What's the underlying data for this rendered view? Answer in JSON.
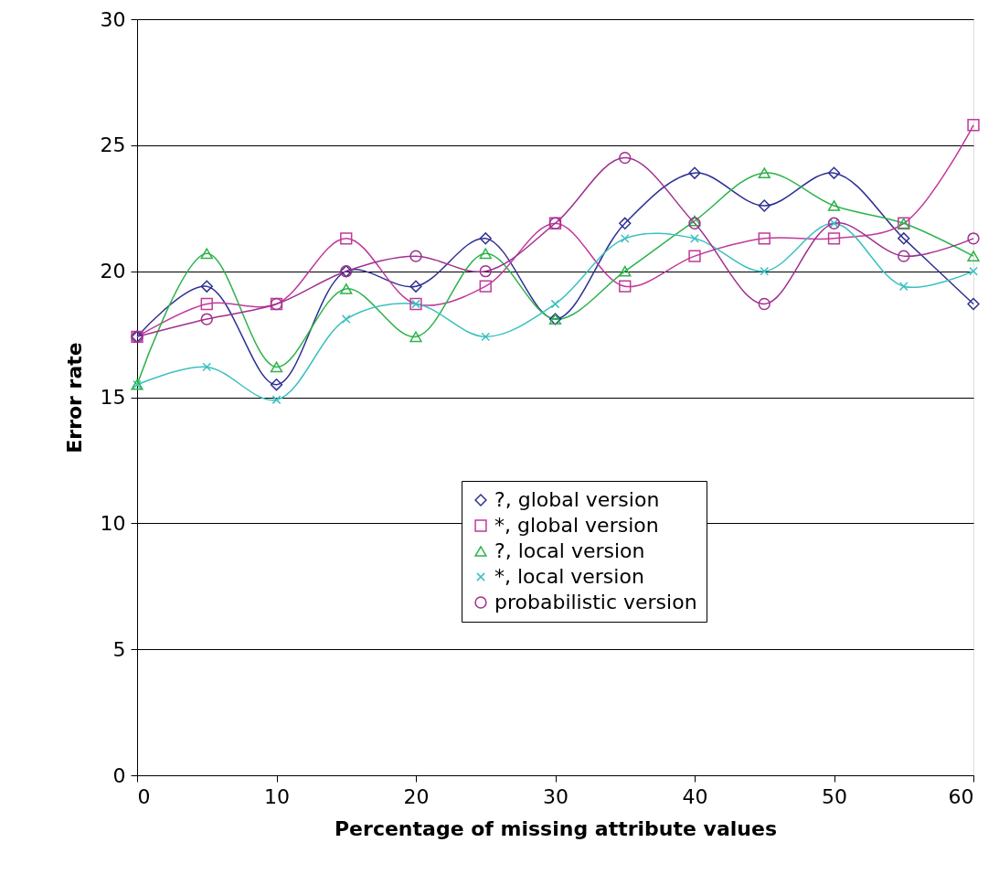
{
  "chart_data": {
    "type": "line",
    "xlabel": "Percentage of missing attribute values",
    "ylabel": "Error rate",
    "x": [
      0,
      5,
      10,
      15,
      20,
      25,
      30,
      35,
      40,
      45,
      50,
      55,
      60
    ],
    "xlim": [
      0,
      60
    ],
    "xticks": [
      0,
      10,
      20,
      30,
      40,
      50,
      60
    ],
    "ylim": [
      0,
      30
    ],
    "yticks": [
      0,
      5,
      10,
      15,
      20,
      25,
      30
    ],
    "grid": "y",
    "legend": "bottom right",
    "line_style": "solid",
    "series": [
      {
        "name": "?, global version",
        "color": "#2e3192",
        "marker": "diamond",
        "values": [
          17.4,
          19.4,
          15.5,
          20.0,
          19.4,
          21.3,
          18.1,
          21.9,
          23.9,
          22.6,
          23.9,
          21.3,
          18.7
        ]
      },
      {
        "name": "*, global version",
        "color": "#c0399a",
        "marker": "square",
        "values": [
          17.4,
          18.7,
          18.7,
          21.3,
          18.7,
          19.4,
          21.9,
          19.4,
          20.6,
          21.3,
          21.3,
          21.9,
          25.8
        ]
      },
      {
        "name": "?, local version",
        "color": "#2db34a",
        "marker": "triangle",
        "values": [
          15.5,
          20.7,
          16.2,
          19.3,
          17.4,
          20.7,
          18.1,
          20.0,
          22.0,
          23.9,
          22.6,
          21.9,
          20.6
        ]
      },
      {
        "name": "*, local version",
        "color": "#3cc0c0",
        "marker": "cross",
        "values": [
          15.5,
          16.2,
          14.9,
          18.1,
          18.7,
          17.4,
          18.7,
          21.3,
          21.3,
          20.0,
          21.9,
          19.4,
          20.0
        ]
      },
      {
        "name": "probabilistic version",
        "color": "#a03090",
        "marker": "circle",
        "values": [
          17.4,
          18.1,
          18.7,
          20.0,
          20.6,
          20.0,
          21.9,
          24.5,
          21.9,
          18.7,
          21.9,
          20.6,
          21.3
        ]
      }
    ]
  }
}
